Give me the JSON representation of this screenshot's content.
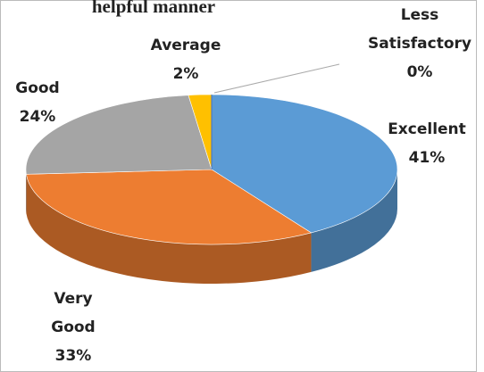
{
  "chart_data": {
    "type": "pie",
    "title": "helpful manner",
    "categories": [
      "Excellent",
      "Very Good",
      "Good",
      "Average",
      "Less Satisfactory"
    ],
    "values": [
      41,
      33,
      24,
      2,
      0
    ],
    "value_labels": [
      "41%",
      "33%",
      "24%",
      "2%",
      "0%"
    ],
    "colors": [
      "#5b9bd5",
      "#ed7d31",
      "#a5a5a5",
      "#ffc000",
      "#4472c4"
    ]
  }
}
